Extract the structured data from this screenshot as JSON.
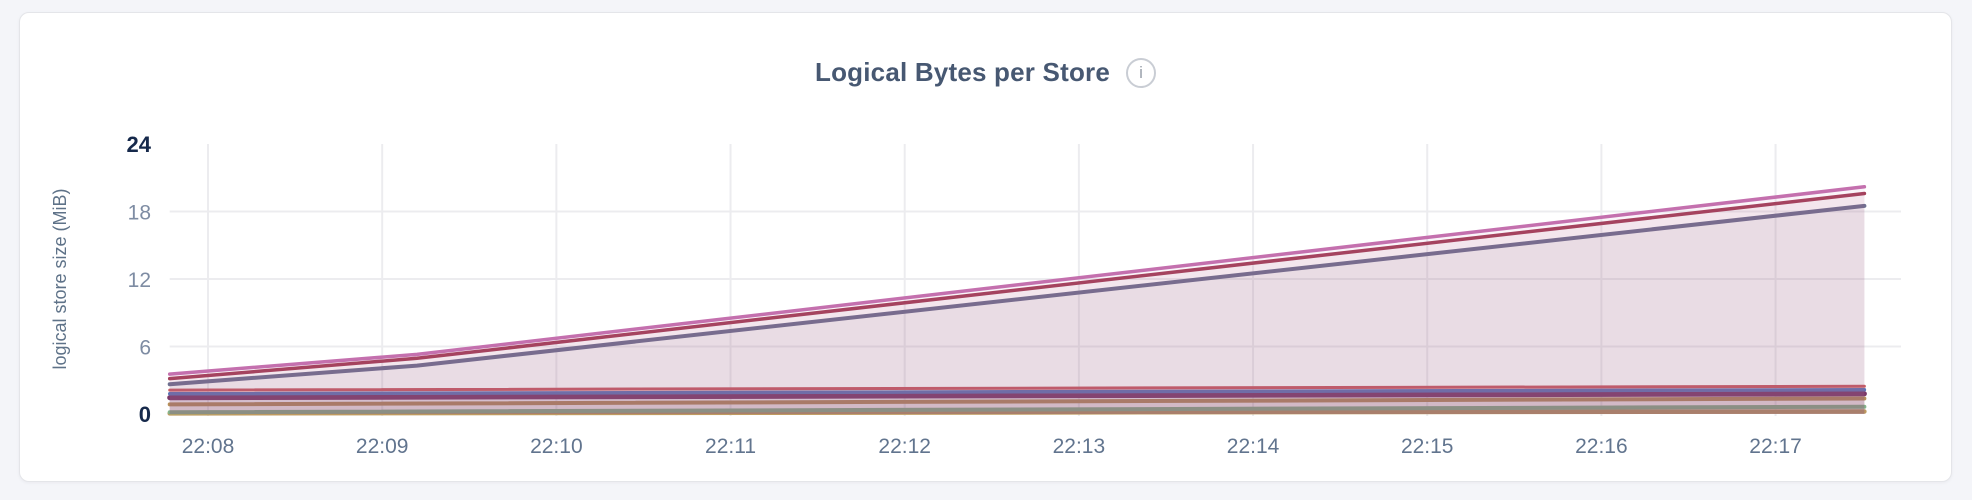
{
  "header": {
    "title": "Logical Bytes per Store",
    "info_glyph": "i"
  },
  "colors": {
    "page_background": "#f4f5f9",
    "card_background": "#ffffff",
    "card_border": "#e4e5e9",
    "title_text": "#475872",
    "grid_line": "#ececef",
    "ytick_text": "#7e8ca3",
    "ytick_emphasis_text": "#16294b",
    "xtick_text": "#61748e",
    "axis_title_text": "#5e7288",
    "info_icon": "#c9cdd4"
  },
  "chart_data": {
    "type": "area",
    "title": "Logical Bytes per Store",
    "xlabel": "",
    "ylabel": "logical store size (MiB)",
    "ylim": [
      0,
      24
    ],
    "yticks": [
      0,
      6,
      12,
      18,
      24
    ],
    "ytick_emphasis": [
      0,
      24
    ],
    "grid_yticks": [
      6,
      12,
      18
    ],
    "grid": true,
    "legend_position": "none",
    "grid_color": "#ececef",
    "fill_opacity": 0.08,
    "x_domain_minutes": [
      7.78,
      17.51
    ],
    "xticks": [
      {
        "label": "22:08",
        "minute": 8
      },
      {
        "label": "22:09",
        "minute": 9
      },
      {
        "label": "22:10",
        "minute": 10
      },
      {
        "label": "22:11",
        "minute": 11
      },
      {
        "label": "22:12",
        "minute": 12
      },
      {
        "label": "22:13",
        "minute": 13
      },
      {
        "label": "22:14",
        "minute": 14
      },
      {
        "label": "22:15",
        "minute": 15
      },
      {
        "label": "22:16",
        "minute": 16
      },
      {
        "label": "22:17",
        "minute": 17
      }
    ],
    "series": [
      {
        "id": "store-tan",
        "color": "#bf9b60",
        "width": 4.5,
        "x": [
          7.78,
          17.51
        ],
        "y": [
          0.05,
          0.22
        ]
      },
      {
        "id": "store-green",
        "color": "#84b68b",
        "width": 4.0,
        "x": [
          7.78,
          17.51
        ],
        "y": [
          0.15,
          0.65
        ]
      },
      {
        "id": "store-gold",
        "color": "#b8915a",
        "width": 4.0,
        "x": [
          7.78,
          17.51
        ],
        "y": [
          0.85,
          1.38
        ]
      },
      {
        "id": "store-purple",
        "color": "#7a3768",
        "width": 5.0,
        "x": [
          7.78,
          17.51
        ],
        "y": [
          1.45,
          1.8
        ]
      },
      {
        "id": "store-blue",
        "color": "#5c74b8",
        "width": 3.5,
        "x": [
          7.78,
          17.51
        ],
        "y": [
          1.8,
          2.15
        ]
      },
      {
        "id": "store-red",
        "color": "#c95c63",
        "width": 3.0,
        "x": [
          7.78,
          17.51
        ],
        "y": [
          2.12,
          2.46
        ]
      },
      {
        "id": "store-slate",
        "color": "#6e7090",
        "width": 4.0,
        "x": [
          7.78,
          9.2,
          17.51
        ],
        "y": [
          2.65,
          4.3,
          18.5
        ]
      },
      {
        "id": "store-maroon",
        "color": "#a33f58",
        "width": 3.5,
        "x": [
          7.78,
          9.2,
          17.51
        ],
        "y": [
          3.15,
          4.95,
          19.6
        ]
      },
      {
        "id": "store-pink",
        "color": "#c470ae",
        "width": 3.5,
        "x": [
          7.78,
          9.2,
          17.51
        ],
        "y": [
          3.55,
          5.3,
          20.2
        ]
      }
    ]
  }
}
